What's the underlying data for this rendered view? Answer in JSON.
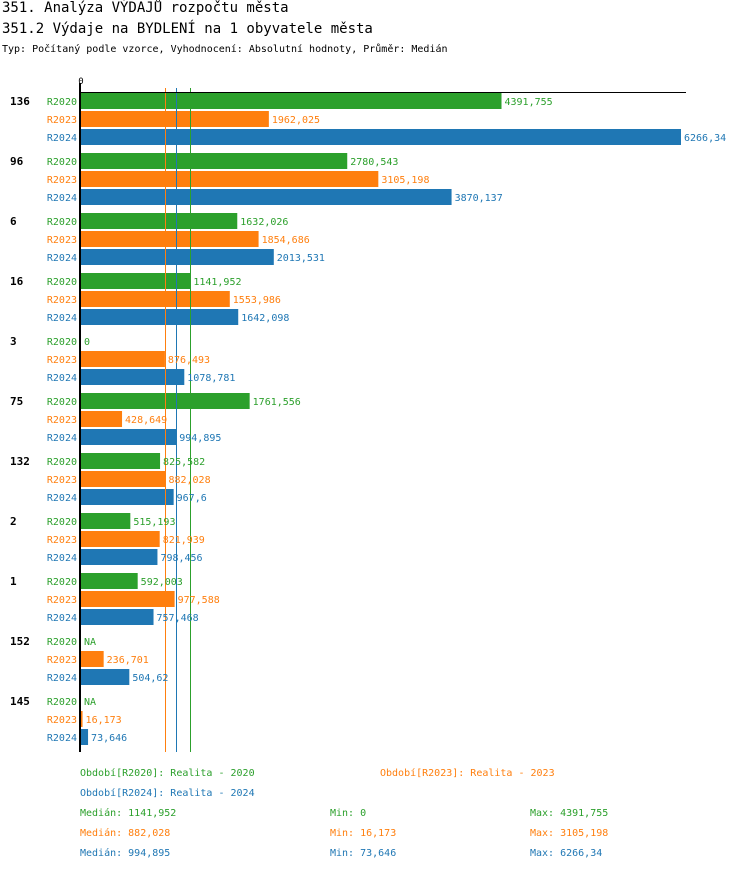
{
  "header": {
    "title": "351. Analýza VÝDAJŮ rozpočtu města",
    "subtitle": "351.2 Výdaje na BYDLENÍ na 1 obyvatele města",
    "info": "Typ: Počítaný podle vzorce, Vyhodnocení: Absolutní hodnoty, Průměr: Medián"
  },
  "colors": {
    "R2020": "#2ca02c",
    "R2023": "#ff7f0e",
    "R2024": "#1f77b4"
  },
  "chart_data": {
    "type": "bar",
    "orientation": "horizontal",
    "title": "351.2 Výdaje na BYDLENÍ na 1 obyvatele města",
    "xlabel": "",
    "ylabel": "",
    "x_tick_labels": [
      "0"
    ],
    "xlim": [
      0,
      6266.34
    ],
    "grid": false,
    "categories": [
      "136",
      "96",
      "6",
      "16",
      "3",
      "75",
      "132",
      "2",
      "1",
      "152",
      "145"
    ],
    "series": [
      {
        "name": "R2020",
        "values": [
          4391.755,
          2780.543,
          1632.026,
          1141.952,
          0,
          1761.556,
          825.582,
          515.193,
          592.003,
          null,
          null
        ],
        "labels": [
          "4391,755",
          "2780,543",
          "1632,026",
          "1141,952",
          "0",
          "1761,556",
          "825,582",
          "515,193",
          "592,003",
          "NA",
          "NA"
        ]
      },
      {
        "name": "R2023",
        "values": [
          1962.025,
          3105.198,
          1854.686,
          1553.986,
          876.493,
          428.649,
          882.028,
          821.939,
          977.588,
          236.701,
          16.173
        ],
        "labels": [
          "1962,025",
          "3105,198",
          "1854,686",
          "1553,986",
          "876,493",
          "428,649",
          "882,028",
          "821,939",
          "977,588",
          "236,701",
          "16,173"
        ]
      },
      {
        "name": "R2024",
        "values": [
          6266.34,
          3870.137,
          2013.531,
          1642.098,
          1078.781,
          994.895,
          967.6,
          798.456,
          757.468,
          504.62,
          73.646
        ],
        "labels": [
          "6266,34",
          "3870,137",
          "2013,531",
          "1642,098",
          "1078,781",
          "994,895",
          "967,6",
          "798,456",
          "757,468",
          "504,62",
          "73,646"
        ]
      }
    ],
    "reference_lines": [
      {
        "series": "R2020",
        "type": "median",
        "value": 1141.952
      },
      {
        "series": "R2023",
        "type": "median",
        "value": 882.028
      },
      {
        "series": "R2024",
        "type": "median",
        "value": 994.895
      }
    ]
  },
  "legend": {
    "periods": [
      {
        "series": "R2020",
        "text": "Období[R2020]: Realita - 2020"
      },
      {
        "series": "R2023",
        "text": "Období[R2023]: Realita - 2023"
      },
      {
        "series": "R2024",
        "text": "Období[R2024]: Realita - 2024"
      }
    ],
    "stats": [
      {
        "series": "R2020",
        "median": "Medián: 1141,952",
        "min": "Min: 0",
        "max": "Max: 4391,755"
      },
      {
        "series": "R2023",
        "median": "Medián: 882,028",
        "min": "Min: 16,173",
        "max": "Max: 3105,198"
      },
      {
        "series": "R2024",
        "median": "Medián: 994,895",
        "min": "Min: 73,646",
        "max": "Max: 6266,34"
      }
    ]
  }
}
